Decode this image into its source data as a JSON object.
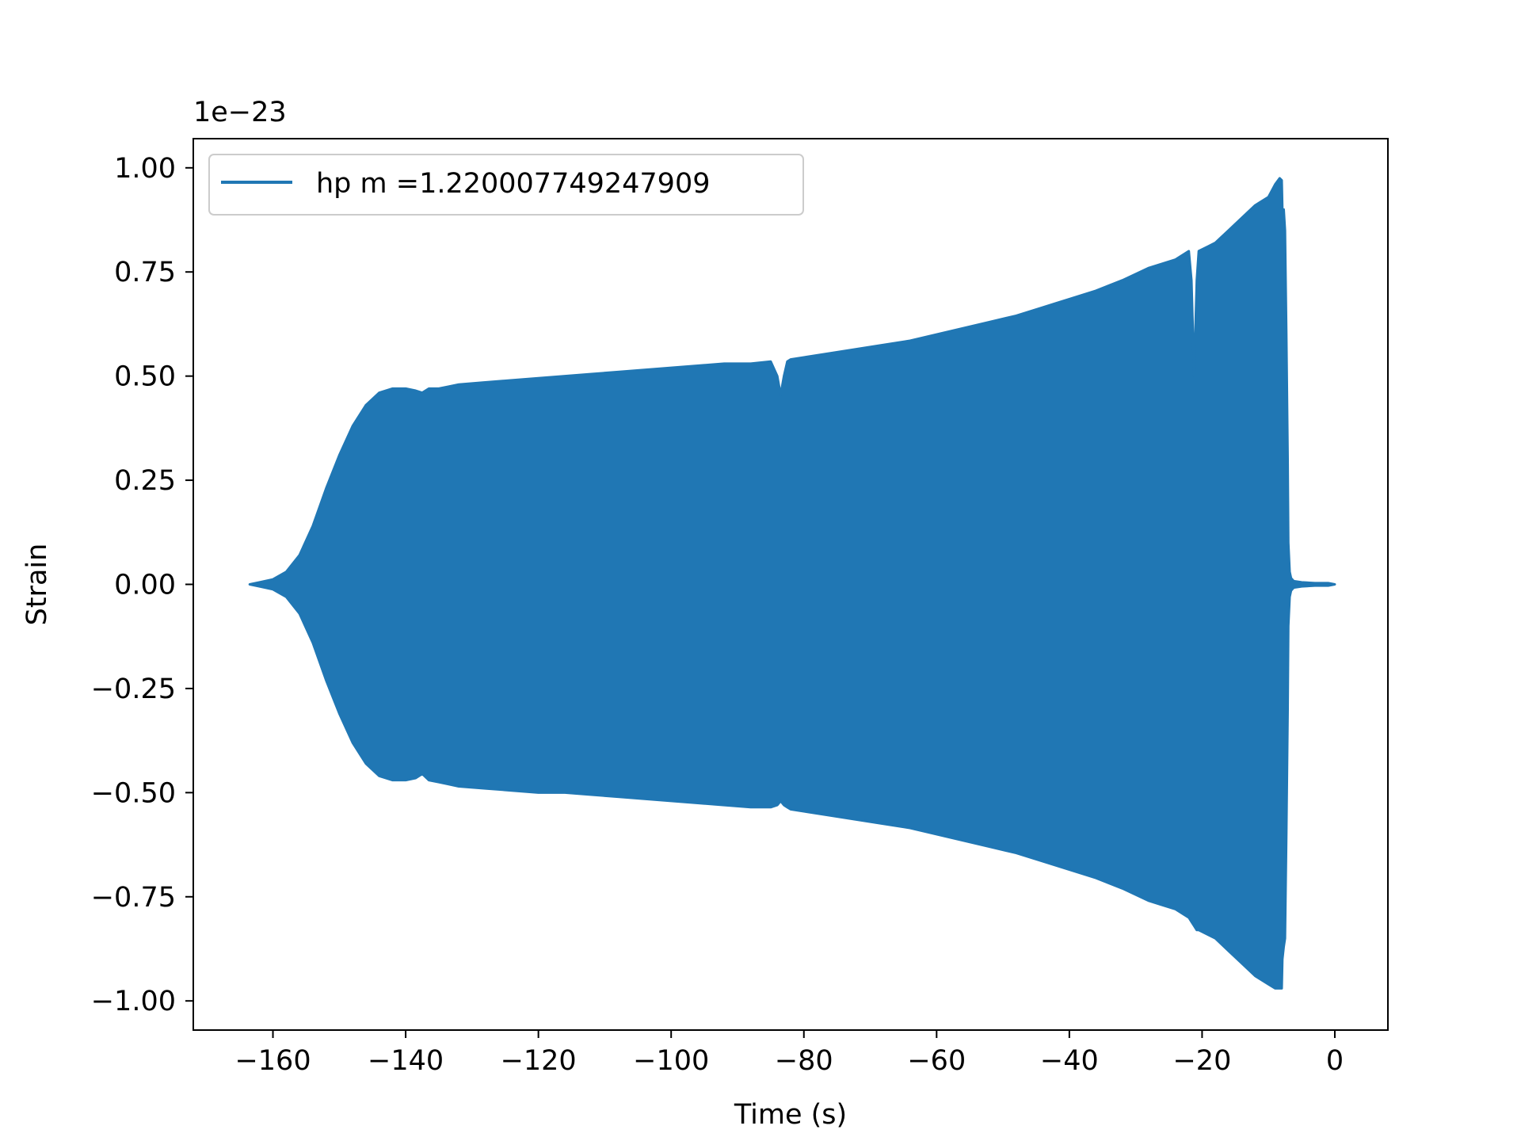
{
  "chart_data": {
    "type": "area",
    "title": "",
    "xlabel": "Time (s)",
    "ylabel": "Strain",
    "y_offset_text": "1e−23",
    "xlim": [
      -172,
      8
    ],
    "ylim": [
      -1.07,
      1.07
    ],
    "xticks": [
      -160,
      -140,
      -120,
      -100,
      -80,
      -60,
      -40,
      -20,
      0
    ],
    "xtick_labels": [
      "−160",
      "−140",
      "−120",
      "−100",
      "−80",
      "−60",
      "−40",
      "−20",
      "0"
    ],
    "yticks": [
      -1.0,
      -0.75,
      -0.5,
      -0.25,
      0.0,
      0.25,
      0.5,
      0.75,
      1.0
    ],
    "ytick_labels": [
      "−1.00",
      "−0.75",
      "−0.50",
      "−0.25",
      "0.00",
      "0.25",
      "0.50",
      "0.75",
      "1.00"
    ],
    "grid": false,
    "legend_position": "top-left",
    "series": [
      {
        "name": "hp m =1.220007749247909",
        "color": "#2077b4",
        "upper_envelope": {
          "x": [
            -163.5,
            -162,
            -160,
            -158,
            -156,
            -154,
            -152,
            -150,
            -148,
            -146,
            -144,
            -142,
            -140,
            -138.5,
            -137.5,
            -136.5,
            -135,
            -133.5,
            -132,
            -128,
            -124,
            -120,
            -116,
            -112,
            -108,
            -104,
            -100,
            -96,
            -92,
            -88,
            -85,
            -84,
            -83.5,
            -83,
            -82.5,
            -82,
            -80,
            -76,
            -72,
            -68,
            -64,
            -60,
            -56,
            -52,
            -48,
            -44,
            -40,
            -36,
            -32,
            -28,
            -24,
            -22,
            -21.6,
            -21.2,
            -20.8,
            -20.5,
            -18,
            -16,
            -14,
            -12,
            -10,
            -9,
            -8.3,
            -8,
            -7.9,
            -7.7,
            -7.5,
            -7.3,
            -7.1,
            -7,
            -6.8,
            -6.6,
            -6.2,
            -5,
            -3,
            -1,
            0
          ],
          "y": [
            0.0,
            0.005,
            0.012,
            0.03,
            0.07,
            0.14,
            0.23,
            0.31,
            0.38,
            0.43,
            0.46,
            0.47,
            0.47,
            0.465,
            0.46,
            0.47,
            0.47,
            0.475,
            0.48,
            0.485,
            0.49,
            0.495,
            0.5,
            0.505,
            0.51,
            0.515,
            0.52,
            0.525,
            0.53,
            0.53,
            0.535,
            0.5,
            0.455,
            0.5,
            0.535,
            0.54,
            0.545,
            0.555,
            0.565,
            0.575,
            0.585,
            0.6,
            0.615,
            0.63,
            0.645,
            0.665,
            0.685,
            0.705,
            0.73,
            0.76,
            0.78,
            0.8,
            0.73,
            0.5,
            0.73,
            0.8,
            0.82,
            0.85,
            0.88,
            0.91,
            0.93,
            0.96,
            0.975,
            0.97,
            0.9,
            0.9,
            0.85,
            0.6,
            0.3,
            0.1,
            0.03,
            0.015,
            0.008,
            0.005,
            0.003,
            0.003,
            0.0
          ]
        },
        "lower_envelope": {
          "x": [
            -163.5,
            -162,
            -160,
            -158,
            -156,
            -154,
            -152,
            -150,
            -148,
            -146,
            -144,
            -142,
            -140,
            -138.5,
            -137.5,
            -136.5,
            -135,
            -133.5,
            -132,
            -128,
            -124,
            -120,
            -116,
            -112,
            -108,
            -104,
            -100,
            -96,
            -92,
            -88,
            -85,
            -84,
            -83.5,
            -83,
            -82.5,
            -82,
            -80,
            -76,
            -72,
            -68,
            -64,
            -60,
            -56,
            -52,
            -48,
            -44,
            -40,
            -36,
            -32,
            -28,
            -24,
            -22,
            -21.6,
            -21.2,
            -20.8,
            -20.5,
            -18,
            -16,
            -14,
            -12,
            -10,
            -9,
            -8.3,
            -8,
            -7.9,
            -7.7,
            -7.5,
            -7.3,
            -7.1,
            -7,
            -6.8,
            -6.6,
            -6.2,
            -5,
            -3,
            -1,
            0
          ],
          "y": [
            0.0,
            -0.005,
            -0.012,
            -0.03,
            -0.07,
            -0.14,
            -0.23,
            -0.31,
            -0.38,
            -0.43,
            -0.46,
            -0.47,
            -0.47,
            -0.465,
            -0.455,
            -0.47,
            -0.475,
            -0.48,
            -0.485,
            -0.49,
            -0.495,
            -0.5,
            -0.5,
            -0.505,
            -0.51,
            -0.515,
            -0.52,
            -0.525,
            -0.53,
            -0.535,
            -0.535,
            -0.53,
            -0.52,
            -0.53,
            -0.535,
            -0.54,
            -0.545,
            -0.555,
            -0.565,
            -0.575,
            -0.585,
            -0.6,
            -0.615,
            -0.63,
            -0.645,
            -0.665,
            -0.685,
            -0.705,
            -0.73,
            -0.76,
            -0.78,
            -0.8,
            -0.81,
            -0.82,
            -0.83,
            -0.83,
            -0.85,
            -0.88,
            -0.91,
            -0.94,
            -0.96,
            -0.97,
            -0.97,
            -0.97,
            -0.9,
            -0.87,
            -0.85,
            -0.6,
            -0.3,
            -0.1,
            -0.03,
            -0.015,
            -0.008,
            -0.005,
            -0.003,
            -0.003,
            0.0
          ]
        }
      }
    ]
  }
}
